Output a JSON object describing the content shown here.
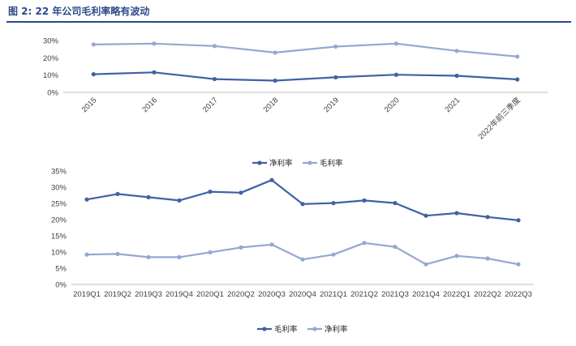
{
  "figure_title": "图 2:  22 年公司毛利率略有波动",
  "colors": {
    "title": "#2b4a8a",
    "series_dark": "#3f62a3",
    "series_light": "#96a7d0"
  },
  "chart_data": [
    {
      "type": "line",
      "categories": [
        "2015",
        "2016",
        "2017",
        "2018",
        "2019",
        "2020",
        "2021",
        "2022年前三季度"
      ],
      "ylim": [
        0,
        0.3
      ],
      "yticks": [
        "0%",
        "10%",
        "20%",
        "30%"
      ],
      "grid": false,
      "legend": "bottom",
      "series": [
        {
          "name": "净利率",
          "color": "#3f62a3",
          "values": [
            0.105,
            0.116,
            0.077,
            0.068,
            0.087,
            0.102,
            0.096,
            0.075
          ]
        },
        {
          "name": "毛利率",
          "color": "#96a7d0",
          "values": [
            0.277,
            0.282,
            0.268,
            0.23,
            0.265,
            0.282,
            0.24,
            0.207
          ]
        }
      ]
    },
    {
      "type": "line",
      "categories": [
        "2019Q1",
        "2019Q2",
        "2019Q3",
        "2019Q4",
        "2020Q1",
        "2020Q2",
        "2020Q3",
        "2020Q4",
        "2021Q1",
        "2021Q2",
        "2021Q3",
        "2021Q4",
        "2022Q1",
        "2022Q2",
        "2022Q3"
      ],
      "ylim": [
        0,
        0.35
      ],
      "yticks": [
        "0%",
        "5%",
        "10%",
        "15%",
        "20%",
        "25%",
        "30%",
        "35%"
      ],
      "grid": false,
      "legend": "bottom",
      "series": [
        {
          "name": "毛利率",
          "color": "#3f62a3",
          "values": [
            0.262,
            0.279,
            0.269,
            0.259,
            0.286,
            0.283,
            0.322,
            0.248,
            0.251,
            0.259,
            0.251,
            0.212,
            0.22,
            0.208,
            0.198
          ]
        },
        {
          "name": "净利率",
          "color": "#96a7d0",
          "values": [
            0.092,
            0.094,
            0.084,
            0.084,
            0.099,
            0.114,
            0.123,
            0.077,
            0.092,
            0.128,
            0.116,
            0.062,
            0.088,
            0.08,
            0.062
          ]
        }
      ]
    }
  ]
}
